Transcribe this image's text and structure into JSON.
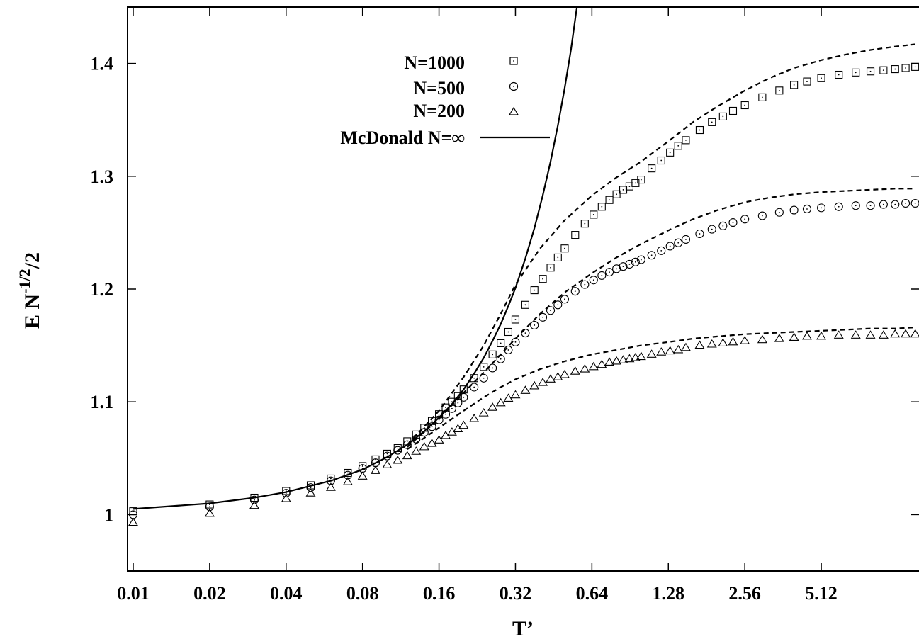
{
  "chart_data": {
    "type": "scatter",
    "x_scale": "log2",
    "xlim": [
      0.0095,
      12.5
    ],
    "ylim": [
      0.95,
      1.45
    ],
    "xticks": [
      0.01,
      0.02,
      0.04,
      0.08,
      0.16,
      0.32,
      0.64,
      1.28,
      2.56,
      5.12
    ],
    "xtick_labels": [
      "0.01",
      "0.02",
      "0.04",
      "0.08",
      "0.16",
      "0.32",
      "0.64",
      "1.28",
      "2.56",
      "5.12"
    ],
    "yticks": [
      1.0,
      1.1,
      1.2,
      1.3,
      1.4
    ],
    "ytick_labels": [
      "1",
      "1.1",
      "1.2",
      "1.3",
      "1.4"
    ],
    "xlabel": "T’",
    "ylabel_main": "E N",
    "ylabel_sup": "-1/2",
    "ylabel_tail": "/2",
    "grid": false,
    "legend_position": "top-center",
    "series": [
      {
        "name": "N=1000",
        "marker": "square",
        "x": [
          0.01,
          0.02,
          0.03,
          0.04,
          0.05,
          0.06,
          0.07,
          0.08,
          0.09,
          0.1,
          0.11,
          0.12,
          0.13,
          0.14,
          0.15,
          0.16,
          0.17,
          0.18,
          0.19,
          0.2,
          0.22,
          0.24,
          0.26,
          0.28,
          0.3,
          0.32,
          0.35,
          0.38,
          0.41,
          0.44,
          0.47,
          0.5,
          0.55,
          0.6,
          0.65,
          0.7,
          0.75,
          0.8,
          0.85,
          0.9,
          0.95,
          1.0,
          1.1,
          1.2,
          1.3,
          1.4,
          1.5,
          1.7,
          1.9,
          2.1,
          2.3,
          2.56,
          3.0,
          3.5,
          4.0,
          4.5,
          5.12,
          6.0,
          7.0,
          8.0,
          9.0,
          10.0,
          11.0,
          12.0
        ],
        "y": [
          1.003,
          1.009,
          1.015,
          1.021,
          1.026,
          1.032,
          1.037,
          1.043,
          1.049,
          1.054,
          1.059,
          1.065,
          1.071,
          1.077,
          1.083,
          1.089,
          1.095,
          1.1,
          1.105,
          1.111,
          1.121,
          1.131,
          1.142,
          1.152,
          1.162,
          1.173,
          1.186,
          1.199,
          1.209,
          1.219,
          1.228,
          1.236,
          1.248,
          1.258,
          1.266,
          1.273,
          1.279,
          1.284,
          1.288,
          1.291,
          1.294,
          1.297,
          1.307,
          1.314,
          1.321,
          1.327,
          1.332,
          1.341,
          1.348,
          1.353,
          1.358,
          1.363,
          1.37,
          1.376,
          1.381,
          1.384,
          1.387,
          1.39,
          1.392,
          1.393,
          1.394,
          1.395,
          1.396,
          1.397
        ]
      },
      {
        "name": "N=500",
        "marker": "circle",
        "x": [
          0.01,
          0.02,
          0.03,
          0.04,
          0.05,
          0.06,
          0.07,
          0.08,
          0.09,
          0.1,
          0.11,
          0.12,
          0.13,
          0.14,
          0.15,
          0.16,
          0.17,
          0.18,
          0.19,
          0.2,
          0.22,
          0.24,
          0.26,
          0.28,
          0.3,
          0.32,
          0.35,
          0.38,
          0.41,
          0.44,
          0.47,
          0.5,
          0.55,
          0.6,
          0.65,
          0.7,
          0.75,
          0.8,
          0.85,
          0.9,
          0.95,
          1.0,
          1.1,
          1.2,
          1.3,
          1.4,
          1.5,
          1.7,
          1.9,
          2.1,
          2.3,
          2.56,
          3.0,
          3.5,
          4.0,
          4.5,
          5.12,
          6.0,
          7.0,
          8.0,
          9.0,
          10.0,
          11.0,
          12.0
        ],
        "y": [
          1.0,
          1.007,
          1.013,
          1.019,
          1.024,
          1.03,
          1.035,
          1.041,
          1.046,
          1.052,
          1.057,
          1.062,
          1.067,
          1.073,
          1.078,
          1.084,
          1.089,
          1.094,
          1.099,
          1.104,
          1.113,
          1.121,
          1.13,
          1.138,
          1.146,
          1.153,
          1.161,
          1.168,
          1.175,
          1.181,
          1.186,
          1.191,
          1.198,
          1.204,
          1.208,
          1.212,
          1.215,
          1.218,
          1.22,
          1.222,
          1.224,
          1.226,
          1.23,
          1.234,
          1.238,
          1.241,
          1.244,
          1.249,
          1.253,
          1.256,
          1.259,
          1.262,
          1.265,
          1.268,
          1.27,
          1.271,
          1.272,
          1.273,
          1.274,
          1.274,
          1.275,
          1.275,
          1.276,
          1.276
        ]
      },
      {
        "name": "N=200",
        "marker": "triangle",
        "x": [
          0.01,
          0.02,
          0.03,
          0.04,
          0.05,
          0.06,
          0.07,
          0.08,
          0.09,
          0.1,
          0.11,
          0.12,
          0.13,
          0.14,
          0.15,
          0.16,
          0.17,
          0.18,
          0.19,
          0.2,
          0.22,
          0.24,
          0.26,
          0.28,
          0.3,
          0.32,
          0.35,
          0.38,
          0.41,
          0.44,
          0.47,
          0.5,
          0.55,
          0.6,
          0.65,
          0.7,
          0.75,
          0.8,
          0.85,
          0.9,
          0.95,
          1.0,
          1.1,
          1.2,
          1.3,
          1.4,
          1.5,
          1.7,
          1.9,
          2.1,
          2.3,
          2.56,
          3.0,
          3.5,
          4.0,
          4.5,
          5.12,
          6.0,
          7.0,
          8.0,
          9.0,
          10.0,
          11.0,
          12.0
        ],
        "y": [
          0.993,
          1.001,
          1.008,
          1.014,
          1.019,
          1.024,
          1.029,
          1.034,
          1.039,
          1.044,
          1.048,
          1.052,
          1.056,
          1.06,
          1.063,
          1.066,
          1.07,
          1.073,
          1.076,
          1.079,
          1.085,
          1.09,
          1.095,
          1.099,
          1.103,
          1.106,
          1.11,
          1.114,
          1.117,
          1.12,
          1.122,
          1.124,
          1.127,
          1.129,
          1.131,
          1.133,
          1.135,
          1.136,
          1.137,
          1.138,
          1.139,
          1.14,
          1.142,
          1.144,
          1.145,
          1.146,
          1.148,
          1.15,
          1.151,
          1.152,
          1.153,
          1.154,
          1.155,
          1.156,
          1.157,
          1.158,
          1.158,
          1.159,
          1.159,
          1.159,
          1.159,
          1.16,
          1.16,
          1.16
        ]
      },
      {
        "name": "McDonald N=∞",
        "style": "solid-line",
        "x": [
          0.01,
          0.02,
          0.03,
          0.04,
          0.06,
          0.08,
          0.1,
          0.12,
          0.14,
          0.16,
          0.18,
          0.2,
          0.22,
          0.24,
          0.26,
          0.28,
          0.3,
          0.32,
          0.35,
          0.38,
          0.41,
          0.44,
          0.47,
          0.5,
          0.53,
          0.56
        ],
        "y": [
          1.005,
          1.01,
          1.015,
          1.02,
          1.03,
          1.04,
          1.051,
          1.062,
          1.074,
          1.086,
          1.098,
          1.111,
          1.125,
          1.139,
          1.154,
          1.169,
          1.185,
          1.201,
          1.227,
          1.254,
          1.283,
          1.313,
          1.345,
          1.378,
          1.413,
          1.452
        ]
      }
    ],
    "dashed_curves": [
      {
        "x": [
          0.12,
          0.16,
          0.2,
          0.24,
          0.28,
          0.32,
          0.4,
          0.5,
          0.64,
          0.8,
          1.0,
          1.28,
          1.6,
          2.0,
          2.56,
          3.2,
          4.0,
          5.12,
          6.4,
          8.0,
          10.0,
          12.0
        ],
        "y": [
          1.062,
          1.092,
          1.122,
          1.15,
          1.178,
          1.204,
          1.236,
          1.261,
          1.283,
          1.299,
          1.313,
          1.331,
          1.348,
          1.362,
          1.376,
          1.387,
          1.396,
          1.403,
          1.408,
          1.412,
          1.415,
          1.417
        ]
      },
      {
        "x": [
          0.12,
          0.16,
          0.2,
          0.24,
          0.28,
          0.32,
          0.4,
          0.5,
          0.64,
          0.8,
          1.0,
          1.28,
          1.6,
          2.0,
          2.56,
          3.2,
          4.0,
          5.12,
          6.4,
          8.0,
          10.0,
          12.0
        ],
        "y": [
          1.06,
          1.085,
          1.108,
          1.126,
          1.142,
          1.156,
          1.178,
          1.197,
          1.214,
          1.228,
          1.24,
          1.252,
          1.262,
          1.27,
          1.277,
          1.281,
          1.284,
          1.286,
          1.287,
          1.288,
          1.289,
          1.289
        ]
      },
      {
        "x": [
          0.12,
          0.14,
          0.16,
          0.2,
          0.24,
          0.28,
          0.32,
          0.4,
          0.5,
          0.64,
          0.8,
          1.0,
          1.28,
          1.6,
          2.0,
          2.56,
          3.2,
          4.0,
          5.12,
          6.4,
          8.0,
          10.0,
          12.0
        ],
        "y": [
          1.058,
          1.068,
          1.077,
          1.092,
          1.104,
          1.113,
          1.12,
          1.129,
          1.136,
          1.142,
          1.146,
          1.15,
          1.153,
          1.156,
          1.158,
          1.16,
          1.161,
          1.162,
          1.163,
          1.164,
          1.165,
          1.165,
          1.166
        ]
      }
    ]
  }
}
